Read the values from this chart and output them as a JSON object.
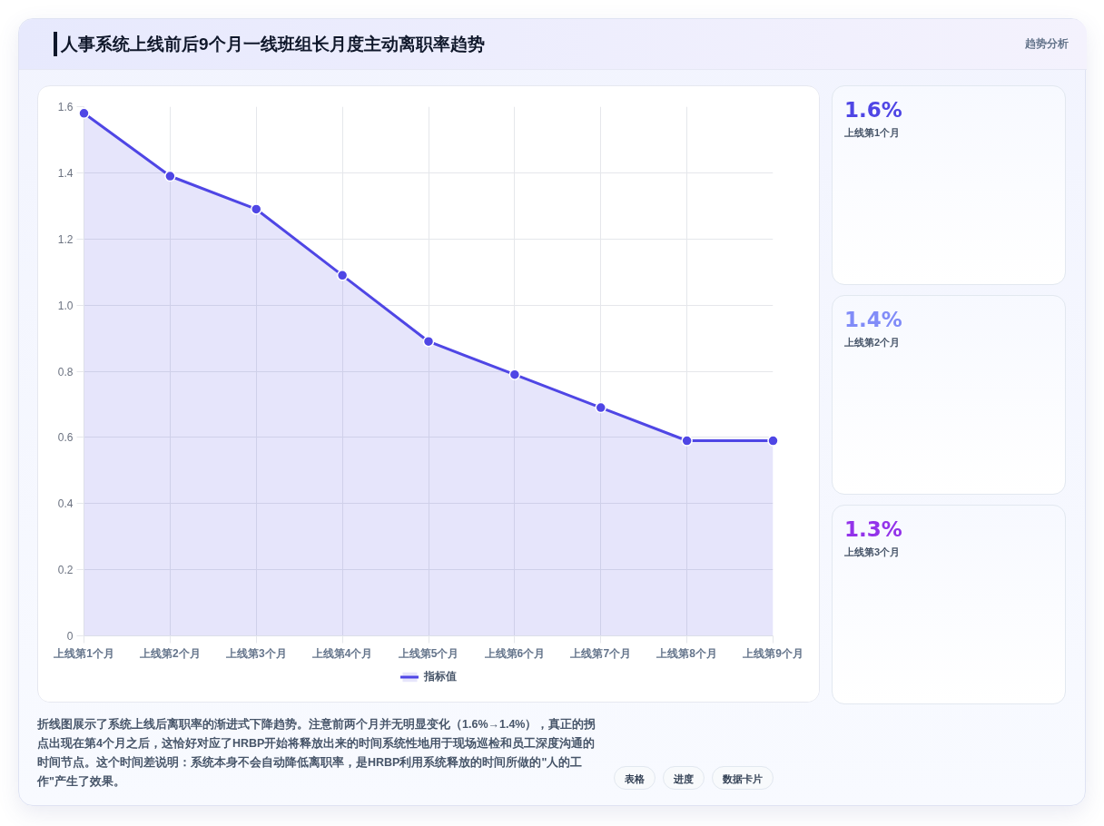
{
  "chart_data": [
    {
      "type": "area",
      "title": "人事系统上线前后9个月一线班组长月度主动离职率趋势",
      "categories": [
        "上线第1个月",
        "上线第2个月",
        "上线第3个月",
        "上线第4个月",
        "上线第5个月",
        "上线第6个月",
        "上线第7个月",
        "上线第8个月",
        "上线第9个月"
      ],
      "series": [
        {
          "name": "指标值",
          "color": "#4f46e5",
          "values": [
            1.58,
            1.39,
            1.29,
            1.09,
            0.89,
            0.79,
            0.69,
            0.59,
            0.59
          ]
        }
      ],
      "ylim": [
        0,
        1.6
      ],
      "yticks": [
        0,
        0.2,
        0.4,
        0.6,
        0.8,
        {
          "value": 1,
          "label": "1.0"
        },
        1.2,
        1.4,
        1.6
      ],
      "grid": true,
      "legend": "bottom",
      "marker": "circle",
      "annotations": [
        "趋势分析",
        "折线图展示了系统上线后离职率的渐进式下降趋势。注意前两个月并无明显变化（1.6%→1.4%），真正的拐点出现在第4个月之后，这恰好对应了HRBP开始将释放出来的时间系统性地用于现场巡检和员工深度沟通的时间节点。这个时间差说明：系统本身不会自动降低离职率，是HRBP利用系统释放的时间所做的\"人的工作\"产生了效果。",
        "表格",
        "进度",
        "数据卡片"
      ]
    },
    {
      "type": "other",
      "categories": [
        "上线第1个月",
        "上线第2个月",
        "上线第3个月"
      ],
      "value_labels": [
        "1.6%",
        "1.4%",
        "1.3%"
      ]
    }
  ]
}
